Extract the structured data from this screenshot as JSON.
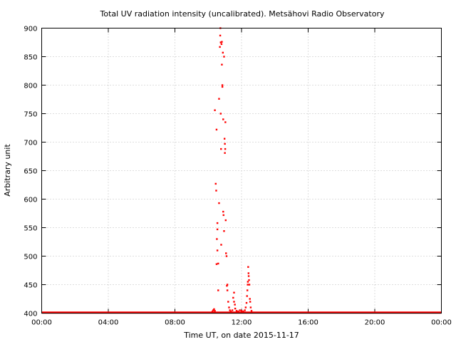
{
  "chart_data": {
    "type": "scatter",
    "title": "Total UV radiation intensity (uncalibrated). Metsähovi Radio Observatory",
    "xlabel": "Time UT, on date 2015-11-17",
    "ylabel": "Arbitrary unit",
    "xlim": [
      0,
      24
    ],
    "ylim": [
      400,
      900
    ],
    "x_ticks": [
      0,
      4,
      8,
      12,
      16,
      20,
      24
    ],
    "x_tick_labels": [
      "00:00",
      "04:00",
      "08:00",
      "12:00",
      "16:00",
      "20:00",
      "00:00"
    ],
    "y_ticks": [
      400,
      450,
      500,
      550,
      600,
      650,
      700,
      750,
      800,
      850,
      900
    ],
    "y_tick_labels": [
      "400",
      "450",
      "500",
      "550",
      "600",
      "650",
      "700",
      "750",
      "800",
      "850",
      "900"
    ],
    "grid": true,
    "marker_color": "#ff0000",
    "baseline": {
      "value": 401,
      "x_start": 0,
      "x_end": 24
    },
    "series": [
      {
        "points": [
          [
            10.25,
            403
          ],
          [
            10.3,
            405
          ],
          [
            10.35,
            407
          ],
          [
            10.4,
            404
          ],
          [
            10.4,
            756
          ],
          [
            10.45,
            627
          ],
          [
            10.48,
            615
          ],
          [
            10.5,
            722
          ],
          [
            10.5,
            486
          ],
          [
            10.52,
            530
          ],
          [
            10.55,
            558
          ],
          [
            10.55,
            547
          ],
          [
            10.55,
            510
          ],
          [
            10.6,
            487
          ],
          [
            10.6,
            440
          ],
          [
            10.65,
            593
          ],
          [
            10.65,
            776
          ],
          [
            10.7,
            867
          ],
          [
            10.72,
            887
          ],
          [
            10.73,
            900
          ],
          [
            10.75,
            875
          ],
          [
            10.75,
            750
          ],
          [
            10.77,
            688
          ],
          [
            10.78,
            520
          ],
          [
            10.8,
            872
          ],
          [
            10.82,
            876
          ],
          [
            10.82,
            836
          ],
          [
            10.85,
            800
          ],
          [
            10.85,
            797
          ],
          [
            10.88,
            857
          ],
          [
            10.9,
            740
          ],
          [
            10.9,
            578
          ],
          [
            10.92,
            572
          ],
          [
            10.95,
            850
          ],
          [
            10.95,
            544
          ],
          [
            10.98,
            706
          ],
          [
            11.0,
            697
          ],
          [
            11.0,
            681
          ],
          [
            11.02,
            688
          ],
          [
            11.03,
            735
          ],
          [
            11.05,
            563
          ],
          [
            11.07,
            505
          ],
          [
            11.1,
            500
          ],
          [
            11.12,
            448
          ],
          [
            11.15,
            450
          ],
          [
            11.15,
            440
          ],
          [
            11.2,
            420
          ],
          [
            11.25,
            410
          ],
          [
            11.3,
            405
          ],
          [
            11.35,
            403
          ],
          [
            11.45,
            405
          ],
          [
            11.5,
            427
          ],
          [
            11.55,
            436
          ],
          [
            11.55,
            420
          ],
          [
            11.6,
            415
          ],
          [
            11.62,
            408
          ],
          [
            11.7,
            404
          ],
          [
            11.8,
            403
          ],
          [
            11.9,
            405
          ],
          [
            12.0,
            404
          ],
          [
            12.1,
            403
          ],
          [
            12.2,
            405
          ],
          [
            12.25,
            410
          ],
          [
            12.3,
            418
          ],
          [
            12.33,
            430
          ],
          [
            12.35,
            440
          ],
          [
            12.37,
            450
          ],
          [
            12.38,
            455
          ],
          [
            12.4,
            481
          ],
          [
            12.42,
            470
          ],
          [
            12.43,
            465
          ],
          [
            12.45,
            458
          ],
          [
            12.47,
            450
          ],
          [
            12.5,
            425
          ],
          [
            12.52,
            420
          ],
          [
            12.55,
            410
          ],
          [
            12.6,
            404
          ]
        ]
      }
    ]
  }
}
